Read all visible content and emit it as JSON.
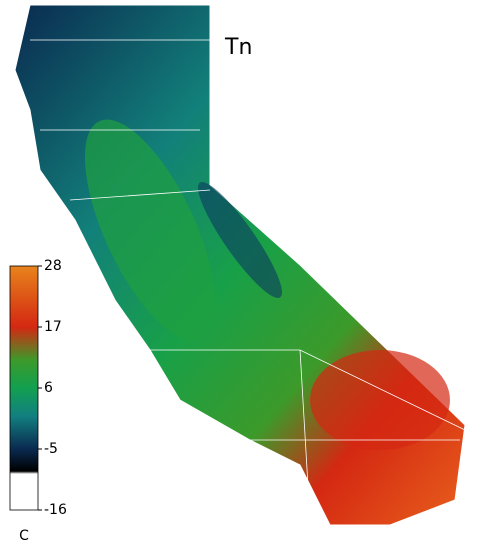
{
  "title": "Tn",
  "colorbar": {
    "lim": [
      -16,
      28
    ],
    "ticks": [
      28,
      17,
      6,
      -5,
      -16
    ],
    "unit": "C",
    "stops": [
      {
        "value": 28,
        "color": "#e8841c"
      },
      {
        "value": 17,
        "color": "#d42812"
      },
      {
        "value": 11,
        "color": "#3c9a2a"
      },
      {
        "value": 6,
        "color": "#12a050"
      },
      {
        "value": 1,
        "color": "#128080"
      },
      {
        "value": -5,
        "color": "#0a2a50"
      },
      {
        "value": -9,
        "color": "#000000"
      },
      {
        "value": -9.5,
        "color": "#ffffff"
      },
      {
        "value": -16,
        "color": "#ffffff"
      }
    ]
  }
}
